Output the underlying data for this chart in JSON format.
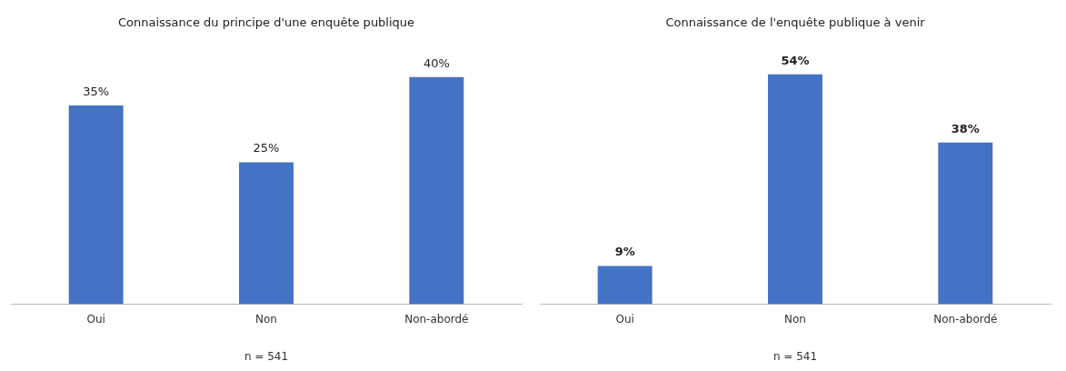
{
  "chart_data": [
    {
      "type": "bar",
      "title": "Connaissance du principe d'une enquête publique",
      "categories": [
        "Oui",
        "Non",
        "Non-abordé"
      ],
      "values": [
        35,
        25,
        40
      ],
      "value_labels": [
        "35%",
        "25%",
        "40%"
      ],
      "color": "#4472c4",
      "grid": false,
      "legend": false,
      "annotations": [
        "n = 541"
      ]
    },
    {
      "type": "bar",
      "title": "Connaissance de l'enquête publique à venir",
      "categories": [
        "Oui",
        "Non",
        "Non-abordé"
      ],
      "values": [
        9,
        54,
        38
      ],
      "value_labels": [
        "9%",
        "54%",
        "38%"
      ],
      "color": "#4472c4",
      "grid": false,
      "legend": false,
      "annotations": [
        "n = 541"
      ]
    }
  ]
}
